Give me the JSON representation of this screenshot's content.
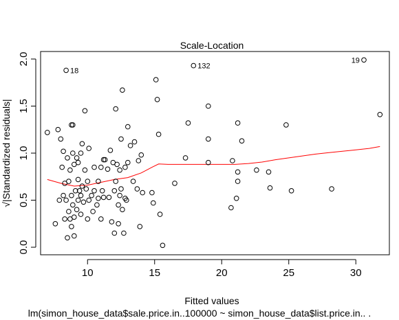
{
  "chart_data": {
    "type": "scatter",
    "title": "Scale-Location",
    "xlabel": "Fitted values",
    "ylabel": "√|Standardized residuals|",
    "subtitle": "lm(simon_house_data$sale.price.in..100000 ~ simon_house_data$list.price.in.. .",
    "xlim": [
      6.5,
      32.5
    ],
    "ylim": [
      -0.08,
      2.08
    ],
    "xticks": [
      10,
      15,
      20,
      25,
      30
    ],
    "yticks": [
      0.0,
      0.5,
      1.0,
      1.5,
      2.0
    ],
    "ytick_labels": [
      "0.0",
      "0.5",
      "1.0",
      "1.5",
      "2.0"
    ],
    "grid": false,
    "points": [
      [
        7.0,
        1.22
      ],
      [
        7.6,
        0.25
      ],
      [
        7.8,
        1.25
      ],
      [
        7.9,
        0.5
      ],
      [
        8.0,
        1.15
      ],
      [
        8.1,
        0.85
      ],
      [
        8.2,
        1.02
      ],
      [
        8.2,
        0.55
      ],
      [
        8.3,
        0.68
      ],
      [
        8.3,
        0.3
      ],
      [
        8.4,
        0.5
      ],
      [
        8.5,
        0.95
      ],
      [
        8.5,
        0.1
      ],
      [
        8.6,
        0.7
      ],
      [
        8.6,
        0.38
      ],
      [
        8.7,
        0.3
      ],
      [
        8.7,
        0.82
      ],
      [
        8.8,
        1.3
      ],
      [
        8.8,
        0.55
      ],
      [
        8.8,
        0.22
      ],
      [
        8.9,
        0.45
      ],
      [
        8.9,
        1.0
      ],
      [
        8.9,
        1.3
      ],
      [
        9.0,
        0.88
      ],
      [
        9.0,
        0.32
      ],
      [
        9.0,
        0.12
      ],
      [
        9.1,
        0.6
      ],
      [
        9.2,
        0.95
      ],
      [
        9.2,
        0.4
      ],
      [
        9.3,
        0.5
      ],
      [
        9.3,
        0.72
      ],
      [
        9.3,
        0.9
      ],
      [
        9.4,
        0.6
      ],
      [
        9.5,
        0.35
      ],
      [
        9.5,
        1.0
      ],
      [
        9.5,
        0.55
      ],
      [
        9.6,
        0.65
      ],
      [
        9.6,
        1.1
      ],
      [
        9.7,
        0.48
      ],
      [
        9.8,
        1.45
      ],
      [
        9.8,
        0.82
      ],
      [
        9.9,
        0.62
      ],
      [
        10.0,
        0.3
      ],
      [
        10.0,
        0.7
      ],
      [
        10.1,
        1.05
      ],
      [
        10.1,
        0.5
      ],
      [
        10.3,
        0.55
      ],
      [
        10.4,
        0.38
      ],
      [
        10.5,
        0.85
      ],
      [
        10.5,
        0.6
      ],
      [
        10.7,
        0.45
      ],
      [
        10.8,
        0.7
      ],
      [
        10.8,
        0.52
      ],
      [
        11.0,
        0.85
      ],
      [
        11.0,
        0.3
      ],
      [
        11.1,
        0.6
      ],
      [
        11.2,
        0.93
      ],
      [
        11.2,
        0.53
      ],
      [
        11.3,
        0.93
      ],
      [
        11.5,
        0.83
      ],
      [
        11.6,
        0.53
      ],
      [
        11.7,
        1.03
      ],
      [
        11.8,
        0.27
      ],
      [
        11.9,
        0.9
      ],
      [
        12.0,
        0.6
      ],
      [
        12.0,
        0.15
      ],
      [
        12.1,
        1.47
      ],
      [
        12.1,
        0.7
      ],
      [
        12.2,
        0.88
      ],
      [
        12.3,
        0.45
      ],
      [
        12.3,
        0.25
      ],
      [
        12.4,
        0.55
      ],
      [
        12.4,
        0.82
      ],
      [
        12.5,
        1.15
      ],
      [
        12.5,
        0.62
      ],
      [
        12.6,
        1.67
      ],
      [
        12.6,
        0.4
      ],
      [
        12.7,
        0.15
      ],
      [
        12.8,
        0.85
      ],
      [
        12.8,
        0.52
      ],
      [
        12.9,
        0.5
      ],
      [
        13.0,
        1.28
      ],
      [
        13.0,
        0.9
      ],
      [
        13.2,
        1.08
      ],
      [
        13.4,
        0.7
      ],
      [
        13.5,
        1.12
      ],
      [
        13.7,
        0.62
      ],
      [
        13.8,
        0.92
      ],
      [
        13.9,
        0.22
      ],
      [
        14.0,
        0.98
      ],
      [
        14.1,
        0.58
      ],
      [
        14.8,
        0.58
      ],
      [
        14.9,
        0.47
      ],
      [
        15.1,
        1.78
      ],
      [
        15.2,
        1.57
      ],
      [
        15.3,
        1.2
      ],
      [
        15.4,
        0.35
      ],
      [
        15.6,
        0.02
      ],
      [
        16.5,
        0.68
      ],
      [
        17.3,
        0.95
      ],
      [
        17.5,
        1.32
      ],
      [
        19.0,
        1.15
      ],
      [
        19.0,
        0.9
      ],
      [
        19.0,
        1.5
      ],
      [
        20.7,
        0.42
      ],
      [
        20.8,
        0.92
      ],
      [
        21.1,
        0.52
      ],
      [
        21.2,
        1.32
      ],
      [
        21.2,
        0.8
      ],
      [
        21.2,
        0.7
      ],
      [
        21.5,
        1.13
      ],
      [
        22.6,
        0.82
      ],
      [
        23.5,
        0.8
      ],
      [
        23.6,
        0.63
      ],
      [
        24.8,
        1.3
      ],
      [
        25.2,
        0.6
      ],
      [
        28.2,
        0.62
      ],
      [
        31.8,
        1.41
      ],
      [
        8.4,
        1.88
      ],
      [
        17.9,
        1.93
      ],
      [
        30.6,
        1.99
      ]
    ],
    "point_labels": [
      {
        "x": 8.4,
        "y": 1.88,
        "label": "18",
        "side": "right"
      },
      {
        "x": 17.9,
        "y": 1.93,
        "label": "132",
        "side": "right"
      },
      {
        "x": 30.6,
        "y": 1.99,
        "label": "19",
        "side": "left"
      }
    ],
    "smooth_line": {
      "color": "#ff0000",
      "x": [
        7.0,
        8.0,
        9.0,
        10.0,
        11.0,
        12.0,
        13.0,
        14.0,
        14.8,
        15.3,
        16.0,
        17.0,
        18.0,
        19.0,
        20.0,
        21.0,
        22.0,
        23.0,
        24.0,
        25.0,
        26.0,
        27.0,
        28.0,
        29.0,
        30.0,
        31.0,
        31.8
      ],
      "y": [
        0.72,
        0.68,
        0.65,
        0.66,
        0.69,
        0.72,
        0.74,
        0.79,
        0.85,
        0.885,
        0.88,
        0.88,
        0.88,
        0.88,
        0.88,
        0.88,
        0.89,
        0.905,
        0.93,
        0.95,
        0.97,
        0.99,
        1.005,
        1.02,
        1.035,
        1.05,
        1.07
      ]
    }
  }
}
